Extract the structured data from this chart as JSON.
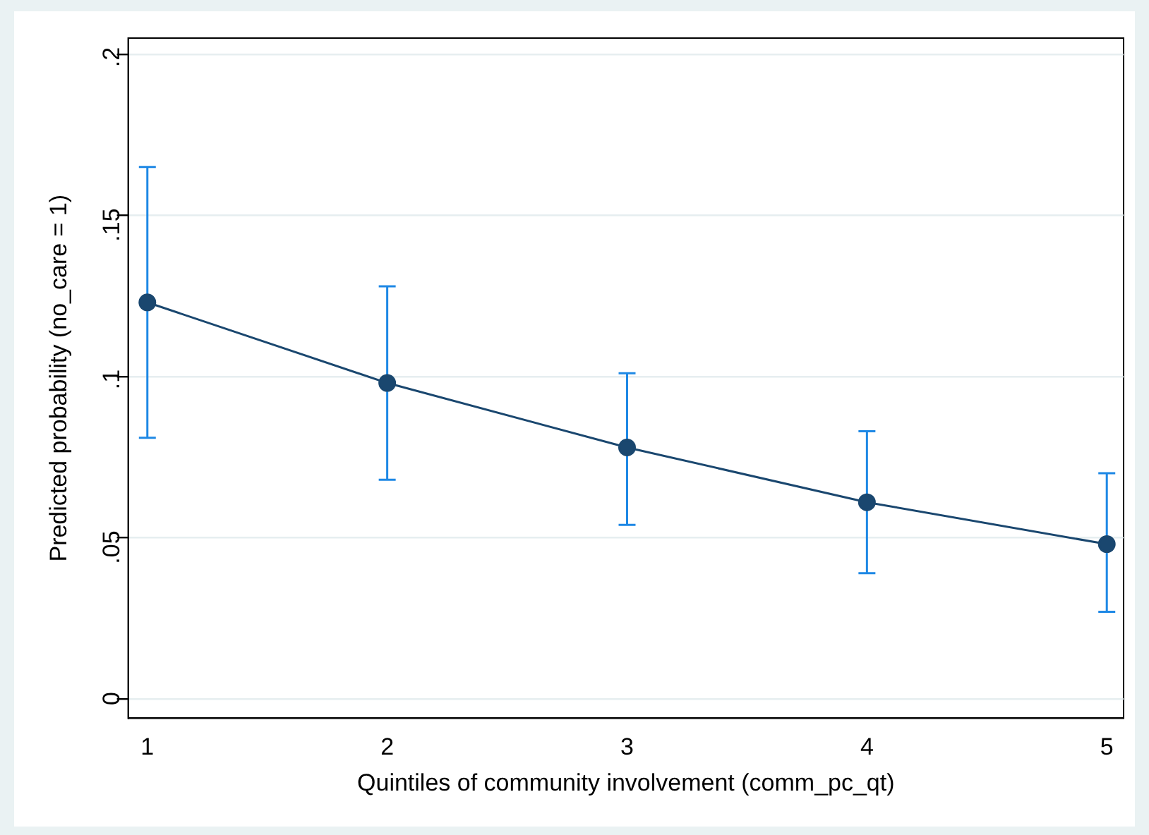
{
  "chart_data": {
    "type": "line",
    "xlabel": "Quintiles of community involvement (comm_pc_qt)",
    "ylabel": "Predicted probability (no_care = 1)",
    "x": [
      1,
      2,
      3,
      4,
      5
    ],
    "series": [
      {
        "color": "#1a476f",
        "values": [
          0.123,
          0.098,
          0.078,
          0.061,
          0.048
        ],
        "errors": [
          [
            0.081,
            0.165
          ],
          [
            0.068,
            0.128
          ],
          [
            0.054,
            0.101
          ],
          [
            0.039,
            0.083
          ],
          [
            0.027,
            0.07
          ]
        ]
      }
    ],
    "xlim": [
      0.92,
      5.07
    ],
    "xticks": [
      1,
      2,
      3,
      4,
      5
    ],
    "ylim": [
      -0.006,
      0.205
    ],
    "yticks": [
      {
        "value": 0,
        "label": "0"
      },
      {
        "value": 0.05,
        "label": ".05"
      },
      {
        "value": 0.1,
        "label": ".1"
      },
      {
        "value": 0.15,
        "label": ".15"
      },
      {
        "value": 0.2,
        "label": ".2"
      }
    ],
    "grid": "y",
    "legend": false,
    "marker": "circle",
    "line_style": "solid"
  }
}
